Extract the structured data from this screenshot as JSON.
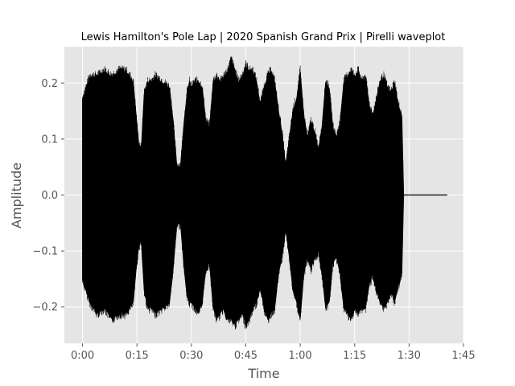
{
  "chart_data": {
    "type": "area",
    "title": "Lewis Hamilton's Pole Lap | 2020 Spanish Grand Prix | Pirelli waveplot",
    "xlabel": "Time",
    "ylabel": "Amplitude",
    "x_unit": "seconds",
    "xlim": [
      -5,
      105
    ],
    "ylim": [
      -0.265,
      0.265
    ],
    "x_ticks": [
      {
        "value": 0,
        "label": "0:00"
      },
      {
        "value": 15,
        "label": "0:15"
      },
      {
        "value": 30,
        "label": "0:30"
      },
      {
        "value": 45,
        "label": "0:45"
      },
      {
        "value": 60,
        "label": "1:00"
      },
      {
        "value": 75,
        "label": "1:15"
      },
      {
        "value": 90,
        "label": "1:30"
      },
      {
        "value": 105,
        "label": "1:45"
      }
    ],
    "y_ticks": [
      {
        "value": 0.2,
        "label": "0.2"
      },
      {
        "value": 0.1,
        "label": "0.1"
      },
      {
        "value": 0.0,
        "label": "0.0"
      },
      {
        "value": -0.1,
        "label": "−0.1"
      },
      {
        "value": -0.2,
        "label": "−0.2"
      }
    ],
    "grid": true,
    "background": "#e5e5e5",
    "grid_color": "#ffffff",
    "line_color": "#000000",
    "series": [
      {
        "envelope_x": [
          0,
          2,
          4,
          6,
          8,
          10,
          12,
          13,
          14,
          14.8,
          15.5,
          16.2,
          17,
          18,
          19,
          20,
          22,
          24,
          25,
          26,
          27,
          28,
          28.8,
          29.5,
          30,
          31,
          32,
          33,
          34,
          35,
          36,
          37,
          38,
          39,
          40,
          41,
          42,
          43,
          44,
          45,
          46,
          47,
          48,
          49,
          50,
          51,
          52,
          53,
          54,
          55,
          56,
          57,
          58,
          59,
          60,
          61,
          62,
          63,
          64,
          65,
          66,
          67,
          68,
          69,
          70,
          71,
          72,
          73,
          74,
          75,
          76,
          77,
          78,
          79,
          80,
          81,
          82,
          83,
          84,
          85,
          86,
          87,
          88,
          88.5,
          90,
          92,
          94,
          96,
          98,
          100.5
        ],
        "envelope_top": [
          0.17,
          0.21,
          0.21,
          0.22,
          0.21,
          0.22,
          0.22,
          0.21,
          0.2,
          0.14,
          0.09,
          0.08,
          0.18,
          0.2,
          0.2,
          0.21,
          0.2,
          0.19,
          0.13,
          0.05,
          0.05,
          0.13,
          0.18,
          0.2,
          0.19,
          0.2,
          0.2,
          0.19,
          0.13,
          0.12,
          0.2,
          0.21,
          0.2,
          0.21,
          0.22,
          0.24,
          0.22,
          0.2,
          0.21,
          0.23,
          0.22,
          0.22,
          0.2,
          0.16,
          0.19,
          0.21,
          0.22,
          0.2,
          0.15,
          0.11,
          0.05,
          0.1,
          0.15,
          0.17,
          0.22,
          0.14,
          0.1,
          0.13,
          0.11,
          0.08,
          0.12,
          0.2,
          0.19,
          0.12,
          0.1,
          0.13,
          0.2,
          0.21,
          0.22,
          0.21,
          0.22,
          0.2,
          0.21,
          0.16,
          0.14,
          0.17,
          0.2,
          0.21,
          0.19,
          0.18,
          0.2,
          0.16,
          0.14,
          0.0,
          0.0,
          0.0,
          0.0,
          0.0,
          0.0,
          0.0
        ],
        "envelope_bottom": [
          -0.15,
          -0.19,
          -0.21,
          -0.2,
          -0.22,
          -0.21,
          -0.21,
          -0.2,
          -0.19,
          -0.13,
          -0.09,
          -0.08,
          -0.17,
          -0.2,
          -0.2,
          -0.21,
          -0.2,
          -0.19,
          -0.13,
          -0.05,
          -0.05,
          -0.13,
          -0.18,
          -0.19,
          -0.19,
          -0.2,
          -0.21,
          -0.19,
          -0.13,
          -0.12,
          -0.2,
          -0.22,
          -0.21,
          -0.2,
          -0.22,
          -0.22,
          -0.23,
          -0.22,
          -0.21,
          -0.23,
          -0.22,
          -0.2,
          -0.19,
          -0.16,
          -0.2,
          -0.22,
          -0.21,
          -0.2,
          -0.14,
          -0.11,
          -0.06,
          -0.11,
          -0.17,
          -0.19,
          -0.22,
          -0.14,
          -0.11,
          -0.13,
          -0.11,
          -0.1,
          -0.14,
          -0.2,
          -0.19,
          -0.12,
          -0.11,
          -0.14,
          -0.2,
          -0.21,
          -0.22,
          -0.2,
          -0.21,
          -0.2,
          -0.2,
          -0.16,
          -0.14,
          -0.17,
          -0.19,
          -0.2,
          -0.19,
          -0.17,
          -0.19,
          -0.16,
          -0.14,
          0.0,
          0.0,
          0.0,
          0.0,
          0.0,
          0.0,
          0.0
        ]
      }
    ]
  }
}
